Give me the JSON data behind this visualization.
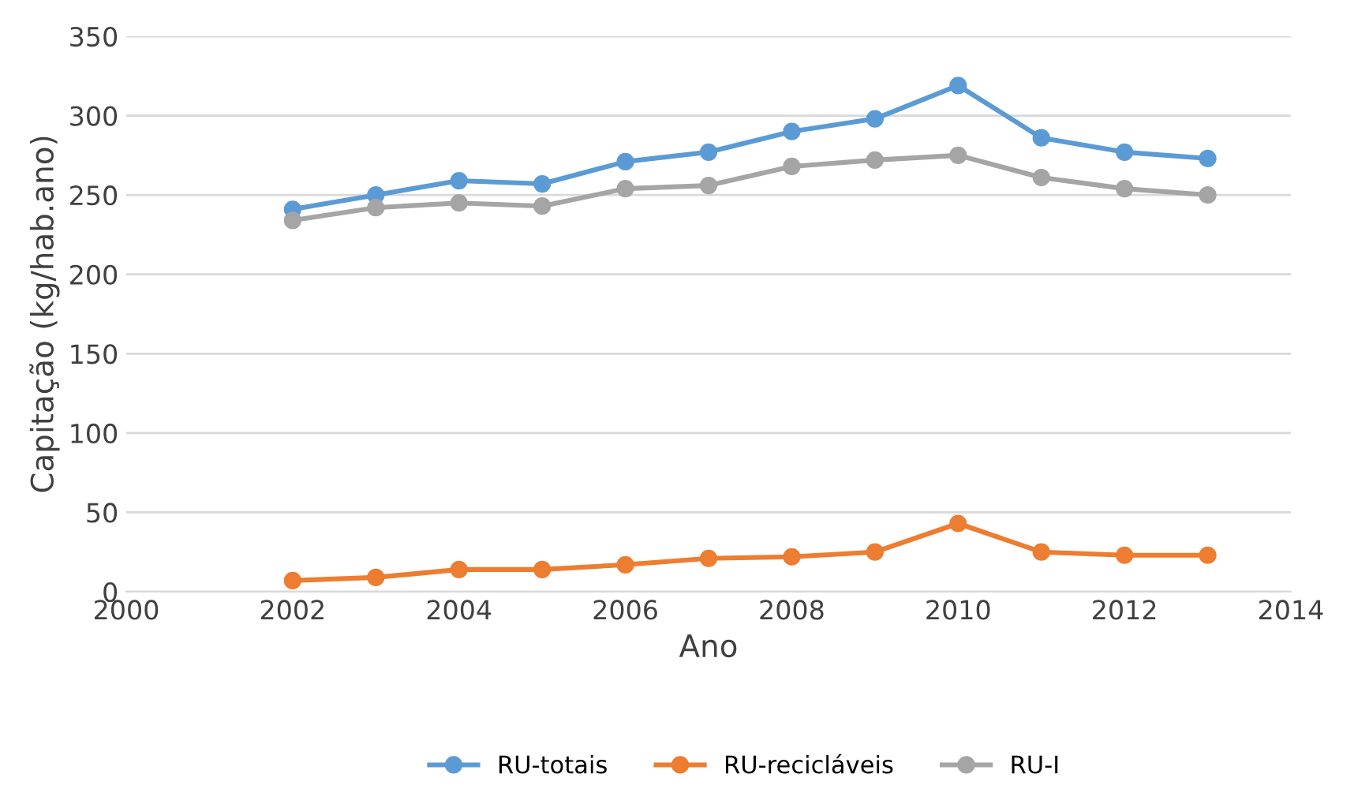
{
  "chart_data": {
    "type": "line",
    "xlabel": "Ano",
    "ylabel": "Capitação (kg/hab.ano)",
    "x": [
      2002,
      2003,
      2004,
      2005,
      2006,
      2007,
      2008,
      2009,
      2010,
      2011,
      2012,
      2013
    ],
    "series": [
      {
        "name": "RU-totais",
        "color": "#5b9bd5",
        "values": [
          241,
          250,
          259,
          257,
          271,
          277,
          290,
          298,
          319,
          286,
          277,
          273
        ]
      },
      {
        "name": "RU-recicláveis",
        "color": "#ed7d31",
        "values": [
          7,
          9,
          14,
          14,
          17,
          21,
          22,
          25,
          43,
          25,
          23,
          23
        ]
      },
      {
        "name": "RU-I",
        "color": "#a5a5a5",
        "values": [
          234,
          242,
          245,
          243,
          254,
          256,
          268,
          272,
          275,
          261,
          254,
          250
        ]
      }
    ],
    "xlim": [
      2000,
      2014
    ],
    "xticks": [
      2000,
      2002,
      2004,
      2006,
      2008,
      2010,
      2012,
      2014
    ],
    "ylim": [
      0,
      350
    ],
    "yticks": [
      0,
      50,
      100,
      150,
      200,
      250,
      300,
      350
    ],
    "grid": "y",
    "legend": "bottom",
    "marker": "circle",
    "line_style": "solid"
  }
}
